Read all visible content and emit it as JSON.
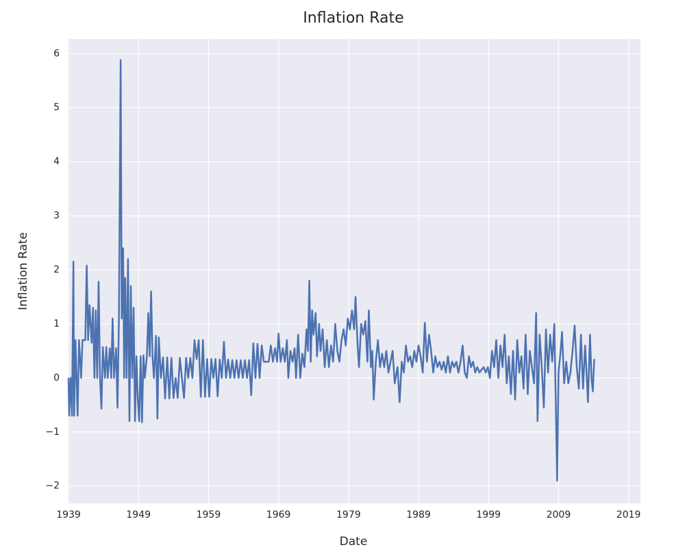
{
  "chart_data": {
    "type": "line",
    "title": "Inflation Rate",
    "x_label": "Date",
    "y_label": "Inflation Rate",
    "xlim": [
      1938.9,
      2020.7
    ],
    "xticks": [
      1939,
      1949,
      1959,
      1969,
      1979,
      1989,
      1999,
      2009,
      2019
    ],
    "ylim": [
      -2.32,
      6.27
    ],
    "yticks": [
      {
        "value": -2,
        "label": "−2"
      },
      {
        "value": -1,
        "label": "−1"
      },
      0,
      1,
      2,
      3,
      4,
      5,
      6
    ],
    "grid": true,
    "series": [
      {
        "color": "#4c72b0",
        "x": [
          1939.0,
          1939.1,
          1939.3,
          1939.5,
          1939.7,
          1939.8,
          1940.0,
          1940.3,
          1940.5,
          1940.8,
          1941.0,
          1941.4,
          1941.6,
          1941.8,
          1942.0,
          1942.3,
          1942.5,
          1942.7,
          1942.9,
          1943.1,
          1943.3,
          1943.5,
          1943.7,
          1943.9,
          1944.2,
          1944.4,
          1944.6,
          1944.9,
          1945.1,
          1945.3,
          1945.5,
          1945.8,
          1946.0,
          1946.2,
          1946.45,
          1946.6,
          1946.8,
          1946.95,
          1947.1,
          1947.3,
          1947.5,
          1947.7,
          1947.9,
          1948.1,
          1948.3,
          1948.5,
          1948.7,
          1948.9,
          1949.1,
          1949.3,
          1949.5,
          1949.7,
          1949.9,
          1950.2,
          1950.4,
          1950.6,
          1950.8,
          1951.0,
          1951.2,
          1951.5,
          1951.7,
          1951.9,
          1952.2,
          1952.5,
          1952.8,
          1953.1,
          1953.4,
          1953.7,
          1954.0,
          1954.3,
          1954.6,
          1954.9,
          1955.2,
          1955.5,
          1955.8,
          1956.1,
          1956.4,
          1956.7,
          1957.0,
          1957.3,
          1957.6,
          1957.9,
          1958.2,
          1958.5,
          1958.8,
          1959.1,
          1959.4,
          1959.7,
          1960.0,
          1960.3,
          1960.6,
          1960.9,
          1961.2,
          1961.5,
          1961.8,
          1962.1,
          1962.4,
          1962.7,
          1963.0,
          1963.3,
          1963.6,
          1963.9,
          1964.2,
          1964.5,
          1964.8,
          1965.1,
          1965.4,
          1965.7,
          1966.0,
          1966.3,
          1966.6,
          1966.9,
          1967.3,
          1967.6,
          1967.9,
          1968.2,
          1968.5,
          1968.8,
          1969.0,
          1969.3,
          1969.6,
          1969.9,
          1970.2,
          1970.4,
          1970.7,
          1971.0,
          1971.3,
          1971.5,
          1971.8,
          1972.1,
          1972.4,
          1972.7,
          1973.0,
          1973.2,
          1973.4,
          1973.6,
          1973.8,
          1974.0,
          1974.3,
          1974.5,
          1974.8,
          1975.0,
          1975.3,
          1975.6,
          1975.9,
          1976.2,
          1976.5,
          1976.8,
          1977.1,
          1977.4,
          1977.7,
          1978.0,
          1978.3,
          1978.6,
          1978.9,
          1979.2,
          1979.5,
          1979.8,
          1980.0,
          1980.3,
          1980.5,
          1980.8,
          1981.1,
          1981.4,
          1981.7,
          1981.9,
          1982.2,
          1982.4,
          1982.6,
          1982.9,
          1983.2,
          1983.5,
          1983.8,
          1984.1,
          1984.4,
          1984.7,
          1985.0,
          1985.3,
          1985.6,
          1986.0,
          1986.3,
          1986.6,
          1986.9,
          1987.2,
          1987.5,
          1987.8,
          1988.1,
          1988.4,
          1988.7,
          1989.0,
          1989.3,
          1989.6,
          1989.9,
          1990.2,
          1990.5,
          1990.8,
          1991.1,
          1991.4,
          1991.7,
          1992.0,
          1992.3,
          1992.6,
          1992.9,
          1993.2,
          1993.5,
          1993.8,
          1994.1,
          1994.4,
          1994.7,
          1995.0,
          1995.3,
          1995.6,
          1995.9,
          1996.2,
          1996.5,
          1996.8,
          1997.1,
          1997.4,
          1997.7,
          1998.0,
          1998.3,
          1998.6,
          1998.9,
          1999.2,
          1999.5,
          1999.8,
          2000.1,
          2000.4,
          2000.7,
          2001.0,
          2001.3,
          2001.6,
          2001.9,
          2002.2,
          2002.5,
          2002.8,
          2003.1,
          2003.4,
          2003.7,
          2004.0,
          2004.3,
          2004.6,
          2004.9,
          2005.2,
          2005.5,
          2005.8,
          2006.0,
          2006.3,
          2006.6,
          2006.9,
          2007.2,
          2007.5,
          2007.8,
          2008.1,
          2008.4,
          2008.6,
          2008.8,
          2009.0,
          2009.3,
          2009.5,
          2009.8,
          2010.1,
          2010.4,
          2010.7,
          2011.0,
          2011.3,
          2011.6,
          2011.9,
          2012.2,
          2012.5,
          2012.8,
          2013.0,
          2013.2,
          2013.5,
          2013.7,
          2013.9,
          2014.1
        ],
        "values": [
          0,
          -0.7,
          0,
          -0.7,
          2.15,
          -0.7,
          0.7,
          -0.7,
          0.7,
          0,
          0.7,
          0.7,
          2.08,
          0.7,
          1.35,
          0.65,
          1.3,
          0,
          1.25,
          0,
          1.78,
          0,
          -0.57,
          0.57,
          0,
          0.57,
          0,
          0.55,
          0,
          1.1,
          0,
          0.55,
          -0.55,
          1.1,
          5.88,
          1.1,
          2.4,
          0,
          1.85,
          0,
          2.2,
          -0.8,
          1.7,
          0,
          1.3,
          -0.8,
          0.4,
          -0.4,
          -0.8,
          0.4,
          -0.82,
          0.42,
          0,
          0.42,
          1.2,
          0.4,
          1.6,
          0.4,
          0,
          0.78,
          -0.75,
          0.75,
          0,
          0.38,
          -0.38,
          0.38,
          -0.38,
          0.37,
          -0.37,
          0,
          -0.37,
          0.37,
          0,
          -0.37,
          0.37,
          0,
          0.37,
          0,
          0.7,
          0.35,
          0.7,
          -0.35,
          0.7,
          -0.35,
          0.35,
          -0.35,
          0.35,
          0,
          0.35,
          -0.34,
          0.34,
          0,
          0.67,
          0,
          0.34,
          0,
          0.33,
          0,
          0.33,
          0,
          0.33,
          0,
          0.33,
          0,
          0.33,
          -0.32,
          0.64,
          0,
          0.63,
          0,
          0.6,
          0.3,
          0.3,
          0.3,
          0.6,
          0.3,
          0.55,
          0.3,
          0.82,
          0.3,
          0.55,
          0.3,
          0.7,
          0,
          0.5,
          0.3,
          0.55,
          0,
          0.8,
          0,
          0.45,
          0.2,
          0.9,
          0.5,
          1.8,
          0.3,
          1.25,
          0.8,
          1.2,
          0.4,
          1.0,
          0.5,
          0.9,
          0.2,
          0.7,
          0.2,
          0.6,
          0.3,
          1.0,
          0.5,
          0.3,
          0.7,
          0.9,
          0.6,
          1.1,
          0.9,
          1.25,
          0.9,
          1.5,
          0.6,
          0.2,
          1.0,
          0.8,
          1.05,
          0.3,
          1.25,
          0.2,
          0.5,
          -0.4,
          0.3,
          0.7,
          0.2,
          0.45,
          0.2,
          0.5,
          0.1,
          0.3,
          0.5,
          -0.1,
          0.2,
          -0.45,
          0.3,
          0.1,
          0.6,
          0.3,
          0.4,
          0.2,
          0.5,
          0.3,
          0.6,
          0.4,
          0.1,
          1.02,
          0.3,
          0.8,
          0.5,
          0.1,
          0.4,
          0.2,
          0.3,
          0.15,
          0.3,
          0.1,
          0.4,
          0.1,
          0.3,
          0.2,
          0.3,
          0.1,
          0.3,
          0.6,
          0.1,
          0,
          0.4,
          0.2,
          0.3,
          0.1,
          0.2,
          0.1,
          0.15,
          0.2,
          0.1,
          0.2,
          0,
          0.5,
          0.2,
          0.7,
          0,
          0.6,
          0.2,
          0.8,
          -0.1,
          0.4,
          -0.3,
          0.5,
          -0.4,
          0.7,
          0.1,
          0.4,
          -0.2,
          0.8,
          -0.3,
          0.5,
          0.2,
          -0.1,
          1.2,
          -0.8,
          0.8,
          0.2,
          -0.55,
          0.9,
          0.1,
          0.8,
          0.3,
          1.0,
          -0.4,
          -1.9,
          0.1,
          0.5,
          0.85,
          -0.1,
          0.3,
          -0.1,
          0.1,
          0.5,
          0.97,
          0.2,
          -0.2,
          0.8,
          -0.2,
          0.6,
          0.1,
          -0.45,
          0.8,
          0,
          -0.25,
          0.35
        ]
      }
    ]
  }
}
